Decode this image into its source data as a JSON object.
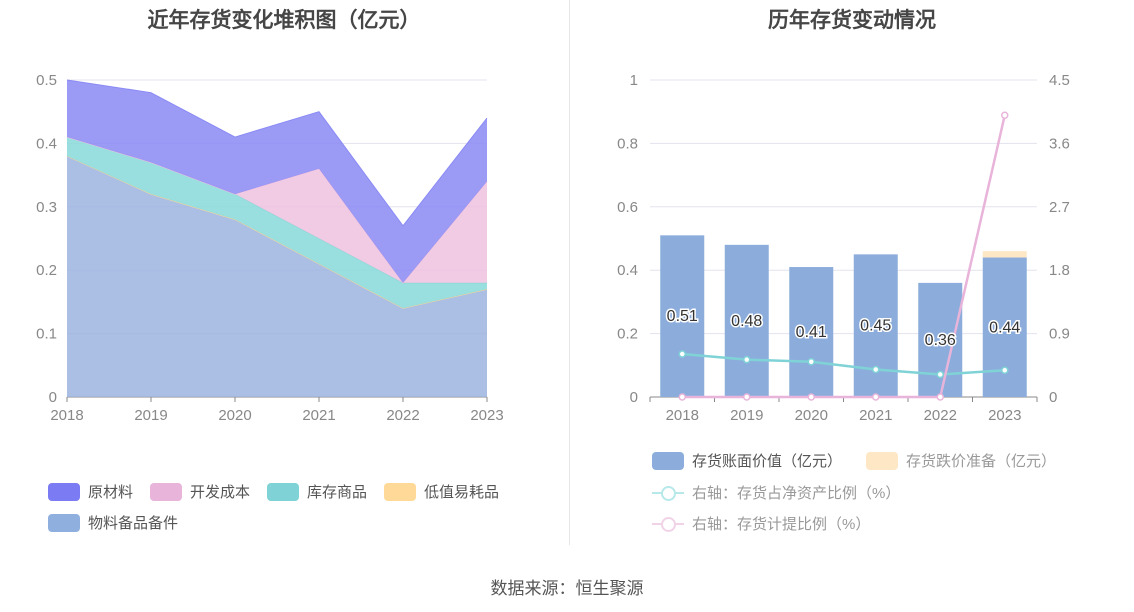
{
  "titles": {
    "left": "近年存货变化堆积图（亿元）",
    "right": "历年存货变动情况"
  },
  "source": "数据来源：恒生聚源",
  "chart_data": [
    {
      "type": "area",
      "title": "近年存货变化堆积图（亿元）",
      "x": [
        "2018",
        "2019",
        "2020",
        "2021",
        "2022",
        "2023"
      ],
      "ylim": [
        0,
        0.5
      ],
      "yticks": [
        "0",
        "0.1",
        "0.2",
        "0.3",
        "0.4",
        "0.5"
      ],
      "stacked": true,
      "series": [
        {
          "name": "物料备品备件",
          "color": "#9cb3df",
          "values": [
            0.38,
            0.32,
            0.28,
            0.21,
            0.14,
            0.17
          ]
        },
        {
          "name": "低值易耗品",
          "color": "#ffd99a",
          "values": [
            0.0,
            0.0,
            0.0,
            0.0,
            0.0,
            0.0
          ]
        },
        {
          "name": "库存商品",
          "color": "#88d9d9",
          "values": [
            0.03,
            0.05,
            0.04,
            0.04,
            0.04,
            0.01
          ]
        },
        {
          "name": "开发成本",
          "color": "#efc2df",
          "values": [
            0.0,
            0.0,
            0.0,
            0.11,
            0.0,
            0.16
          ]
        },
        {
          "name": "原材料",
          "color": "#8a8af5",
          "values": [
            0.09,
            0.11,
            0.09,
            0.09,
            0.09,
            0.1
          ]
        }
      ],
      "legend": [
        {
          "name": "原材料",
          "color": "#7b7bf4"
        },
        {
          "name": "开发成本",
          "color": "#e8b4da"
        },
        {
          "name": "库存商品",
          "color": "#7fd3d6"
        },
        {
          "name": "低值易耗品",
          "color": "#ffd998"
        },
        {
          "name": "物料备品备件",
          "color": "#8fb0de"
        }
      ]
    },
    {
      "type": "bar",
      "title": "历年存货变动情况",
      "categories": [
        "2018",
        "2019",
        "2020",
        "2021",
        "2022",
        "2023"
      ],
      "ylim": [
        0,
        1
      ],
      "yticks": [
        "0",
        "0.2",
        "0.4",
        "0.6",
        "0.8",
        "1"
      ],
      "y2lim": [
        0,
        4.5
      ],
      "y2ticks": [
        "0",
        "0.9",
        "1.8",
        "2.7",
        "3.6",
        "4.5"
      ],
      "bars": [
        {
          "name": "存货账面价值（亿元）",
          "color": "#8caddc",
          "values": [
            0.51,
            0.48,
            0.41,
            0.45,
            0.36,
            0.44
          ],
          "labels": [
            "0.51",
            "0.48",
            "0.41",
            "0.45",
            "0.36",
            "0.44"
          ]
        },
        {
          "name": "存货跌价准备（亿元）",
          "color": "#fde7c4",
          "values": [
            0,
            0,
            0,
            0,
            0,
            0.02
          ]
        }
      ],
      "lines": [
        {
          "name": "右轴：存货占净资产比例（%）",
          "color": "#7fd3d6",
          "values": [
            0.61,
            0.53,
            0.5,
            0.39,
            0.32,
            0.38
          ]
        },
        {
          "name": "右轴：存货计提比例（%）",
          "color": "#e8b4da",
          "values": [
            0,
            0,
            0,
            0,
            0,
            4.0
          ]
        }
      ]
    }
  ]
}
